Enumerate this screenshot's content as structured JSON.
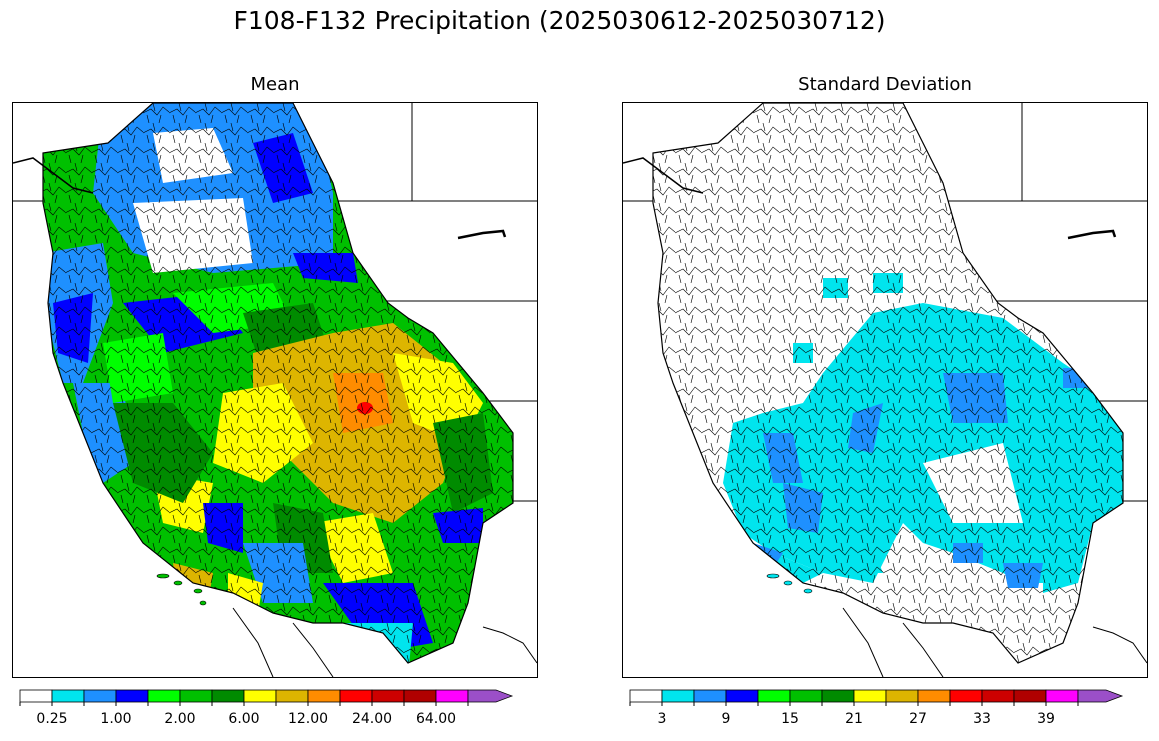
{
  "title": "F108-F132 Precipitation (2025030612-2025030712)",
  "panels": {
    "mean": {
      "title": "Mean",
      "colorbar": {
        "colors": [
          "#ffffff",
          "#00e5ee",
          "#1e90ff",
          "#0000ff",
          "#00ff00",
          "#00c000",
          "#008b00",
          "#ffff00",
          "#ddb500",
          "#ff8c00",
          "#ff0000",
          "#cd0000",
          "#b00000",
          "#ff00ff",
          "#9b4fc8"
        ],
        "tick_labels": [
          "0.25",
          "1.00",
          "2.00",
          "6.00",
          "12.00",
          "24.00",
          "64.00"
        ]
      }
    },
    "sd": {
      "title": "Standard Deviation",
      "colorbar": {
        "colors": [
          "#ffffff",
          "#00e5ee",
          "#1e90ff",
          "#0000ff",
          "#00ff00",
          "#00c000",
          "#008b00",
          "#ffff00",
          "#ddb500",
          "#ff8c00",
          "#ff0000",
          "#cd0000",
          "#b00000",
          "#ff00ff",
          "#9b4fc8"
        ],
        "tick_labels": [
          "3",
          "9",
          "15",
          "21",
          "27",
          "33",
          "39"
        ]
      }
    }
  },
  "colors": {
    "white": "#ffffff",
    "cyan": "#00e5ee",
    "lightblue": "#1e90ff",
    "blue": "#0000ff",
    "lime": "#00ff00",
    "green": "#00c000",
    "darkgreen": "#008b00",
    "yellow": "#ffff00",
    "gold": "#ddb500",
    "orange": "#ff8c00",
    "red": "#ff0000"
  }
}
